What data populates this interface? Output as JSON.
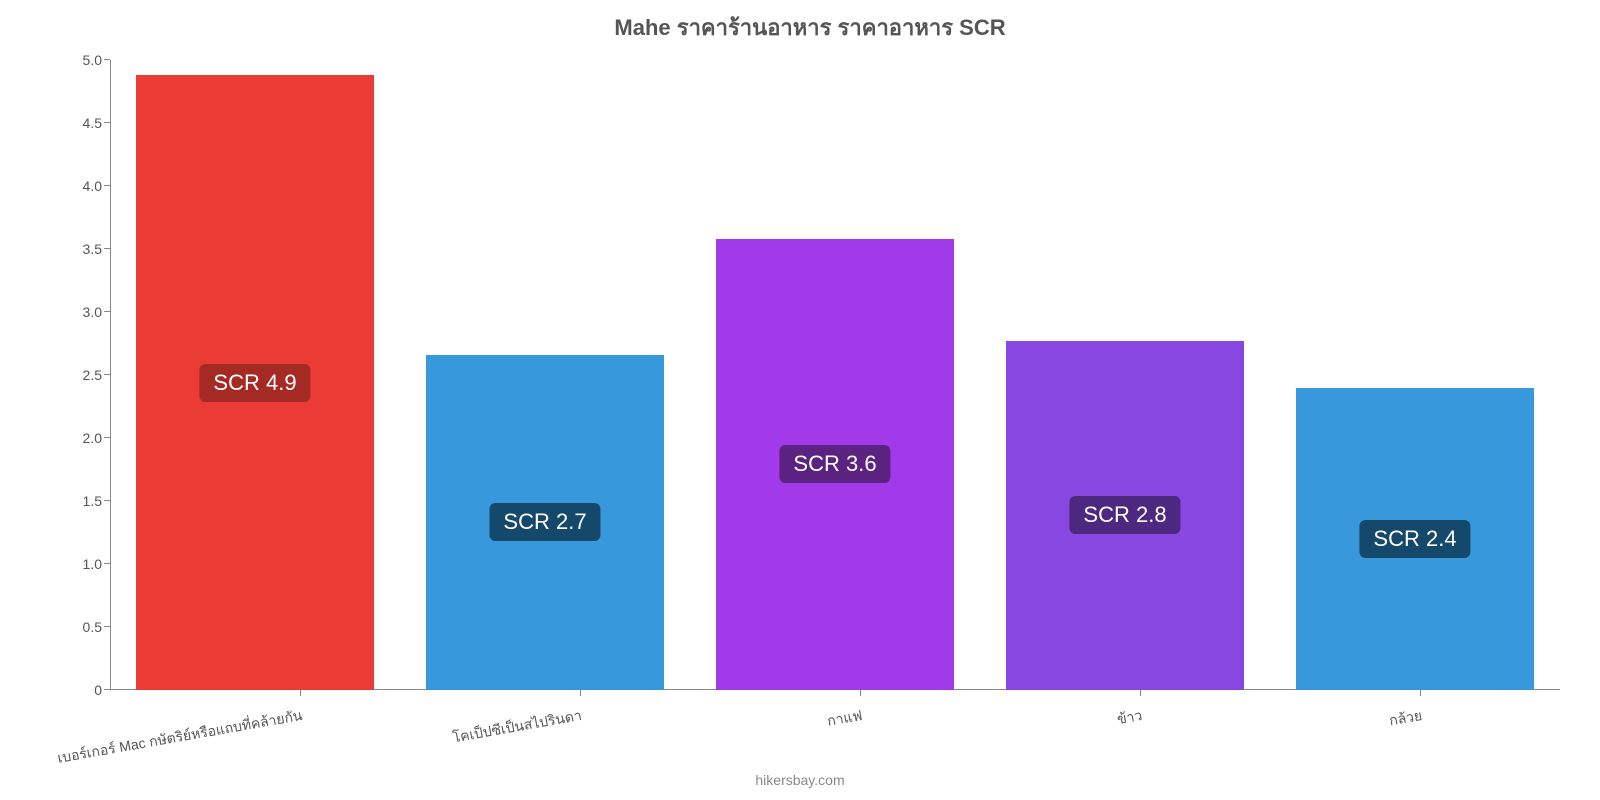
{
  "chart": {
    "type": "bar",
    "title": "Mahe ราคาร้านอาหาร ราคาอาหาร SCR",
    "title_fontsize": 22,
    "title_color": "#555555",
    "background_color": "#ffffff",
    "axis_color": "#888888",
    "label_color": "#555555",
    "label_fontsize": 14,
    "ylim": [
      0,
      5.0
    ],
    "yticks": [
      0,
      0.5,
      1.0,
      1.5,
      2.0,
      2.5,
      3.0,
      3.5,
      4.0,
      4.5,
      5.0
    ],
    "ytick_labels": [
      "0",
      "0.5",
      "1.0",
      "1.5",
      "2.0",
      "2.5",
      "3.0",
      "3.5",
      "4.0",
      "4.5",
      "5.0"
    ],
    "categories": [
      "เบอร์เกอร์ Mac กษัตริย์หรือแถบที่คล้ายกัน",
      "โคเป็ปซีเป็นสไปรินดา",
      "กาแฟ",
      "ข้าว",
      "กล้วย"
    ],
    "values": [
      4.88,
      2.66,
      3.58,
      2.77,
      2.4
    ],
    "bar_colors": [
      "#eb3b35",
      "#3898dc",
      "#a13ae8",
      "#8747e0",
      "#3898dc"
    ],
    "badge_labels": [
      "SCR 4.9",
      "SCR 2.7",
      "SCR 3.6",
      "SCR 2.8",
      "SCR 2.4"
    ],
    "badge_colors": [
      "#a52a24",
      "#14496b",
      "#5b2282",
      "#4d2880",
      "#14496b"
    ],
    "badge_text_color": "#ffffff",
    "badge_fontsize": 22,
    "bar_width": 0.82,
    "x_label_rotation": -10,
    "attribution": "hikersbay.com",
    "attribution_color": "#888888"
  }
}
